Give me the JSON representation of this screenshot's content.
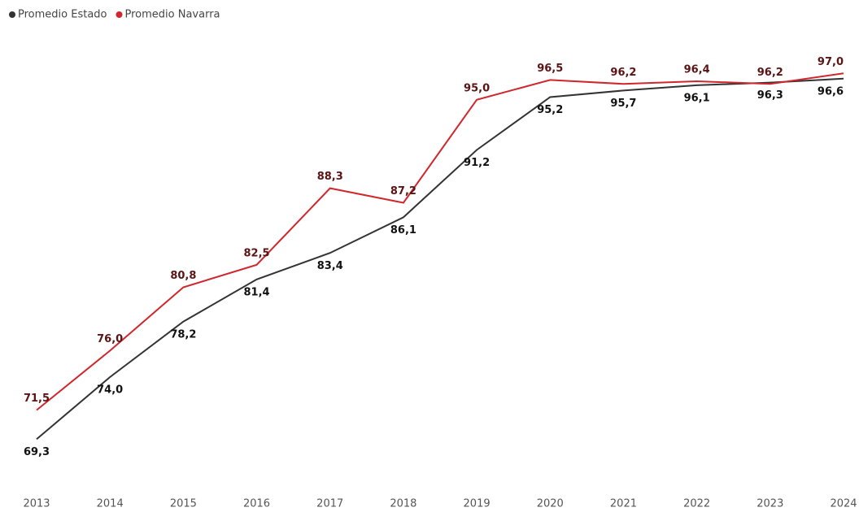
{
  "chart_data": {
    "type": "line",
    "categories": [
      "2013",
      "2014",
      "2015",
      "2016",
      "2017",
      "2018",
      "2019",
      "2020",
      "2021",
      "2022",
      "2023",
      "2024"
    ],
    "series": [
      {
        "name": "Promedio Estado",
        "color": "#333333",
        "label_color": "#111111",
        "values": [
          69.3,
          74.0,
          78.2,
          81.4,
          83.4,
          86.1,
          91.2,
          95.2,
          95.7,
          96.1,
          96.3,
          96.6
        ],
        "value_labels": [
          "69,3",
          "74,0",
          "78,2",
          "81,4",
          "83,4",
          "86,1",
          "91,2",
          "95,2",
          "95,7",
          "96,1",
          "96,3",
          "96,6"
        ]
      },
      {
        "name": "Promedio Navarra",
        "color": "#d0262c",
        "label_color": "#5a1414",
        "values": [
          71.5,
          76.0,
          80.8,
          82.5,
          88.3,
          87.2,
          95.0,
          96.5,
          96.2,
          96.4,
          96.2,
          97.0
        ],
        "value_labels": [
          "71,5",
          "76,0",
          "80,8",
          "82,5",
          "88,3",
          "87,2",
          "95,0",
          "96,5",
          "96,2",
          "96,4",
          "96,2",
          "97,0"
        ]
      }
    ],
    "ylim": [
      66,
      98
    ],
    "grid": false,
    "legend": "top-left"
  }
}
